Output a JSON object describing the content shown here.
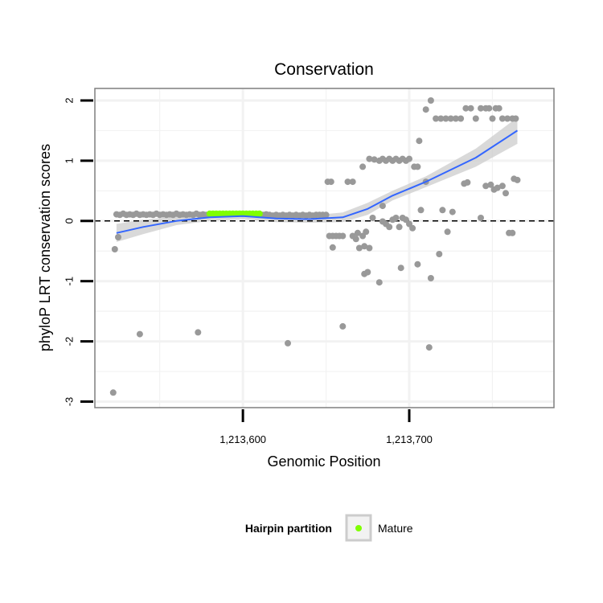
{
  "chart_data": {
    "type": "scatter",
    "title": "Conservation",
    "xlabel": "Genomic Position",
    "ylabel": "phyloP LRT conservation scores",
    "xlim": [
      1213511,
      1213787
    ],
    "ylim": [
      -3.1,
      2.2
    ],
    "x_ticks": [
      1213600,
      1213700
    ],
    "x_tick_labels": [
      "1,213,600",
      "1,213,700"
    ],
    "y_ticks": [
      2,
      1,
      0,
      -1,
      -2,
      -3
    ],
    "y_tick_labels": [
      "2",
      "1",
      "0",
      "-1",
      "-2",
      "-3"
    ],
    "grid": true,
    "reference_line": {
      "y": 0,
      "style": "dashed"
    },
    "colors": {
      "points": "#999999",
      "mature": "#7fff00",
      "smooth_line": "#3366ff",
      "confidence_band": "#cccccc",
      "panel_border": "#7f7f7f",
      "grid": "#f2f2f2"
    },
    "series": [
      {
        "role": "background-points",
        "points": [
          [
            1213524,
            0.11
          ],
          [
            1213526,
            0.1
          ],
          [
            1213528,
            0.12
          ],
          [
            1213530,
            0.1
          ],
          [
            1213532,
            0.11
          ],
          [
            1213534,
            0.1
          ],
          [
            1213536,
            0.12
          ],
          [
            1213538,
            0.1
          ],
          [
            1213540,
            0.11
          ],
          [
            1213542,
            0.1
          ],
          [
            1213544,
            0.11
          ],
          [
            1213546,
            0.1
          ],
          [
            1213548,
            0.12
          ],
          [
            1213550,
            0.1
          ],
          [
            1213552,
            0.11
          ],
          [
            1213554,
            0.1
          ],
          [
            1213556,
            0.11
          ],
          [
            1213558,
            0.1
          ],
          [
            1213560,
            0.12
          ],
          [
            1213562,
            0.1
          ],
          [
            1213564,
            0.11
          ],
          [
            1213566,
            0.1
          ],
          [
            1213568,
            0.11
          ],
          [
            1213570,
            0.1
          ],
          [
            1213572,
            0.12
          ],
          [
            1213574,
            0.1
          ],
          [
            1213576,
            0.11
          ],
          [
            1213578,
            0.1
          ],
          [
            1213612,
            0.1
          ],
          [
            1213614,
            0.11
          ],
          [
            1213616,
            0.1
          ],
          [
            1213618,
            0.09
          ],
          [
            1213620,
            0.1
          ],
          [
            1213622,
            0.09
          ],
          [
            1213624,
            0.1
          ],
          [
            1213626,
            0.09
          ],
          [
            1213628,
            0.1
          ],
          [
            1213630,
            0.09
          ],
          [
            1213632,
            0.1
          ],
          [
            1213634,
            0.09
          ],
          [
            1213636,
            0.1
          ],
          [
            1213638,
            0.09
          ],
          [
            1213640,
            0.1
          ],
          [
            1213642,
            0.09
          ],
          [
            1213644,
            0.1
          ],
          [
            1213646,
            0.1
          ],
          [
            1213648,
            0.1
          ],
          [
            1213650,
            0.1
          ],
          [
            1213523,
            -0.47
          ],
          [
            1213525,
            -0.27
          ],
          [
            1213522,
            -2.85
          ],
          [
            1213538,
            -1.88
          ],
          [
            1213573,
            -1.85
          ],
          [
            1213627,
            -2.03
          ],
          [
            1213651,
            0.65
          ],
          [
            1213653,
            0.65
          ],
          [
            1213663,
            0.65
          ],
          [
            1213666,
            0.65
          ],
          [
            1213672,
            0.9
          ],
          [
            1213652,
            -0.25
          ],
          [
            1213654,
            -0.25
          ],
          [
            1213656,
            -0.25
          ],
          [
            1213658,
            -0.25
          ],
          [
            1213660,
            -0.25
          ],
          [
            1213654,
            -0.44
          ],
          [
            1213660,
            -1.75
          ],
          [
            1213666,
            -0.25
          ],
          [
            1213668,
            -0.3
          ],
          [
            1213669,
            -0.2
          ],
          [
            1213670,
            -0.45
          ],
          [
            1213672,
            -0.25
          ],
          [
            1213673,
            -0.42
          ],
          [
            1213674,
            -0.18
          ],
          [
            1213673,
            -0.88
          ],
          [
            1213675,
            -0.85
          ],
          [
            1213676,
            -0.45
          ],
          [
            1213678,
            0.05
          ],
          [
            1213682,
            -1.02
          ],
          [
            1213690,
            0.02
          ],
          [
            1213695,
            -0.78
          ],
          [
            1213705,
            -0.72
          ],
          [
            1213676,
            1.03
          ],
          [
            1213679,
            1.02
          ],
          [
            1213682,
            1.0
          ],
          [
            1213684,
            1.03
          ],
          [
            1213686,
            1.0
          ],
          [
            1213688,
            1.03
          ],
          [
            1213690,
            1.0
          ],
          [
            1213692,
            1.03
          ],
          [
            1213694,
            1.0
          ],
          [
            1213696,
            1.03
          ],
          [
            1213698,
            1.0
          ],
          [
            1213700,
            1.03
          ],
          [
            1213703,
            0.9
          ],
          [
            1213705,
            0.9
          ],
          [
            1213684,
            0.25
          ],
          [
            1213684,
            -0.01
          ],
          [
            1213686,
            -0.05
          ],
          [
            1213688,
            -0.1
          ],
          [
            1213692,
            0.05
          ],
          [
            1213694,
            -0.1
          ],
          [
            1213696,
            0.05
          ],
          [
            1213698,
            0.02
          ],
          [
            1213700,
            -0.05
          ],
          [
            1213702,
            -0.12
          ],
          [
            1213706,
            1.33
          ],
          [
            1213707,
            0.18
          ],
          [
            1213710,
            0.65
          ],
          [
            1213712,
            -2.1
          ],
          [
            1213713,
            -0.95
          ],
          [
            1213710,
            1.85
          ],
          [
            1213713,
            2.0
          ],
          [
            1213716,
            1.7
          ],
          [
            1213719,
            1.7
          ],
          [
            1213722,
            1.7
          ],
          [
            1213725,
            1.7
          ],
          [
            1213728,
            1.7
          ],
          [
            1213731,
            1.7
          ],
          [
            1213734,
            1.87
          ],
          [
            1213737,
            1.87
          ],
          [
            1213740,
            1.7
          ],
          [
            1213743,
            1.87
          ],
          [
            1213746,
            1.87
          ],
          [
            1213748,
            1.87
          ],
          [
            1213750,
            1.7
          ],
          [
            1213752,
            1.87
          ],
          [
            1213754,
            1.87
          ],
          [
            1213756,
            1.7
          ],
          [
            1213759,
            1.7
          ],
          [
            1213762,
            1.7
          ],
          [
            1213764,
            1.7
          ],
          [
            1213718,
            -0.55
          ],
          [
            1213720,
            0.18
          ],
          [
            1213723,
            -0.18
          ],
          [
            1213726,
            0.15
          ],
          [
            1213733,
            0.62
          ],
          [
            1213735,
            0.64
          ],
          [
            1213743,
            0.05
          ],
          [
            1213746,
            0.58
          ],
          [
            1213749,
            0.6
          ],
          [
            1213751,
            0.52
          ],
          [
            1213753,
            0.55
          ],
          [
            1213756,
            0.58
          ],
          [
            1213758,
            0.46
          ],
          [
            1213760,
            -0.2
          ],
          [
            1213762,
            -0.2
          ],
          [
            1213763,
            0.7
          ],
          [
            1213765,
            0.68
          ]
        ]
      },
      {
        "name": "Mature",
        "points": [
          [
            1213580,
            0.12
          ],
          [
            1213582,
            0.12
          ],
          [
            1213584,
            0.12
          ],
          [
            1213586,
            0.12
          ],
          [
            1213588,
            0.12
          ],
          [
            1213590,
            0.12
          ],
          [
            1213592,
            0.12
          ],
          [
            1213594,
            0.12
          ],
          [
            1213596,
            0.12
          ],
          [
            1213598,
            0.12
          ],
          [
            1213600,
            0.12
          ],
          [
            1213602,
            0.12
          ],
          [
            1213604,
            0.12
          ],
          [
            1213606,
            0.12
          ],
          [
            1213608,
            0.12
          ],
          [
            1213610,
            0.12
          ]
        ]
      }
    ],
    "smooth": {
      "x": [
        1213524,
        1213540,
        1213560,
        1213580,
        1213600,
        1213620,
        1213640,
        1213660,
        1213675,
        1213690,
        1213710,
        1213740,
        1213765
      ],
      "y": [
        -0.2,
        -0.1,
        0.0,
        0.06,
        0.08,
        0.04,
        0.03,
        0.06,
        0.2,
        0.42,
        0.65,
        1.05,
        1.5
      ],
      "upper": [
        -0.05,
        0.02,
        0.07,
        0.12,
        0.13,
        0.1,
        0.09,
        0.14,
        0.3,
        0.5,
        0.74,
        1.2,
        1.72
      ],
      "lower": [
        -0.35,
        -0.22,
        -0.07,
        0.0,
        0.03,
        -0.02,
        -0.03,
        -0.02,
        0.1,
        0.34,
        0.56,
        0.9,
        1.28
      ]
    },
    "legend": {
      "title": "Hairpin partition",
      "entries": [
        "Mature"
      ],
      "placement": "bottom"
    }
  }
}
